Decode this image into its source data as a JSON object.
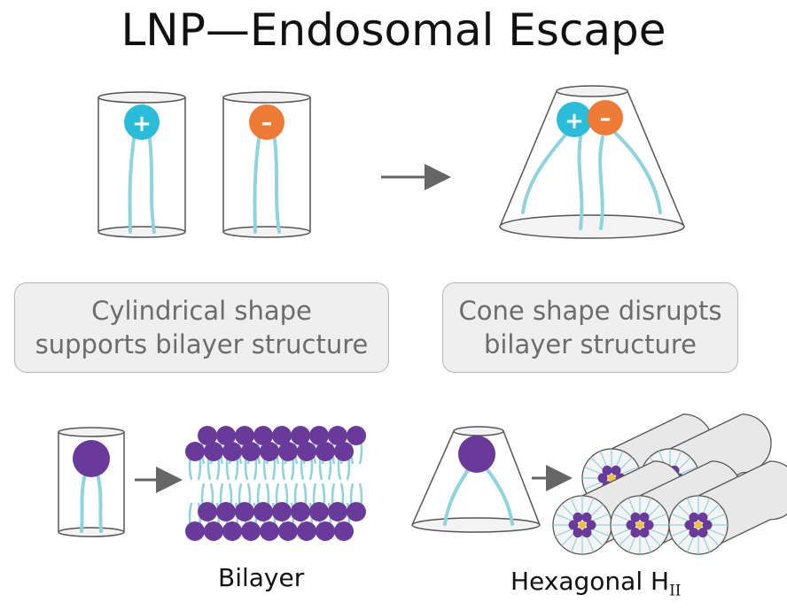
{
  "title": "LNP—Endosomal Escape",
  "boxes": {
    "left": [
      "Cylindrical shape",
      "supports bilayer structure"
    ],
    "right": [
      "Cone shape disrupts",
      "bilayer structure"
    ]
  },
  "labels": {
    "bilayer": "Bilayer",
    "hexagonal": "Hexagonal H",
    "hexagonal_sub": "II"
  },
  "charges": {
    "positive": "+",
    "negative": "–"
  },
  "colors": {
    "tail": "#8fd3dc",
    "cation": "#2bbcd9",
    "anion": "#ef7a35",
    "lipid_head": "#6a3a9a",
    "arrow": "#666666",
    "outline": "#555555",
    "core": "#f1c232"
  }
}
